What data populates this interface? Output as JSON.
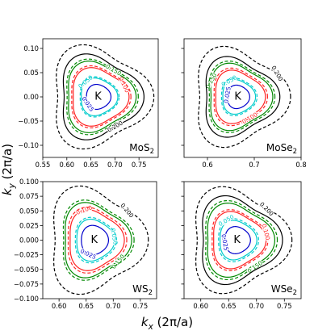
{
  "figure": {
    "xlabel_main": "k",
    "xlabel_sub": "x",
    "xlabel_rest": " (2π/a)",
    "ylabel_main": "k",
    "ylabel_sub": "y",
    "ylabel_rest": " (2π/a)"
  },
  "chart_data": [
    {
      "type": "line",
      "panel": "MoS",
      "panel_sub": "2",
      "k_label": "K",
      "center": [
        0.665,
        0.0
      ],
      "xlim": [
        0.55,
        0.79
      ],
      "ylim": [
        -0.125,
        0.12
      ],
      "x_ticks": [
        0.55,
        0.6,
        0.65,
        0.7,
        0.75
      ],
      "x_tick_labels": [
        "0.55",
        "0.60",
        "0.65",
        "0.70",
        "0.75"
      ],
      "y_ticks": [
        -0.1,
        -0.05,
        0.0,
        0.05,
        0.1
      ],
      "y_tick_labels": [
        "−0.10",
        "−0.05",
        "0.00",
        "0.05",
        "0.10"
      ],
      "contours": [
        {
          "level": 0.025,
          "color": "#0000cc",
          "style": "solid",
          "r": 0.0255,
          "trig": 0.05,
          "label": "0.025",
          "label_angle": 215
        },
        {
          "level": 0.05,
          "color": "#00cccc",
          "style": "solid",
          "r": 0.038,
          "trig": 0.08,
          "label": "0.050",
          "label_angle": 130
        },
        {
          "level": 0.05,
          "color": "#00cccc",
          "style": "dashed",
          "r": 0.0405,
          "trig": 0.08
        },
        {
          "level": 0.1,
          "color": "#ff2222",
          "style": "solid",
          "r": 0.058,
          "trig": 0.11,
          "label": "0.100",
          "label_angle": 25
        },
        {
          "level": 0.1,
          "color": "#ff2222",
          "style": "dashed",
          "r": 0.0615,
          "trig": 0.11
        },
        {
          "level": 0.15,
          "color": "#008800",
          "style": "solid",
          "r": 0.07,
          "trig": 0.13
        },
        {
          "level": 0.15,
          "color": "#008800",
          "style": "dashed",
          "r": 0.074,
          "trig": 0.13,
          "label": "0.150",
          "label_angle": 60
        },
        {
          "level": 0.2,
          "color": "#000000",
          "style": "solid",
          "r": 0.083,
          "trig": 0.15,
          "label": "0.200",
          "label_angle": 300
        },
        {
          "level": 0.2,
          "color": "#000000",
          "style": "dashed",
          "r": 0.1,
          "trig": 0.16
        }
      ]
    },
    {
      "type": "line",
      "panel": "MoSe",
      "panel_sub": "2",
      "k_label": "K",
      "center": [
        0.665,
        0.0
      ],
      "xlim": [
        0.55,
        0.8
      ],
      "ylim": [
        -0.125,
        0.12
      ],
      "x_ticks": [
        0.6,
        0.7,
        0.8
      ],
      "x_tick_labels": [
        "0.6",
        "0.7",
        "0.8"
      ],
      "y_ticks": [
        -0.1,
        -0.05,
        0.0,
        0.05,
        0.1
      ],
      "y_tick_labels": [],
      "contours": [
        {
          "level": 0.025,
          "color": "#0000cc",
          "style": "solid",
          "r": 0.024,
          "trig": 0.05,
          "label": "0.025",
          "label_angle": 170
        },
        {
          "level": 0.05,
          "color": "#00cccc",
          "style": "solid",
          "r": 0.035,
          "trig": 0.08,
          "label": "0.050",
          "label_angle": 120
        },
        {
          "level": 0.05,
          "color": "#00cccc",
          "style": "dashed",
          "r": 0.038,
          "trig": 0.08
        },
        {
          "level": 0.1,
          "color": "#ff2222",
          "style": "solid",
          "r": 0.053,
          "trig": 0.11
        },
        {
          "level": 0.1,
          "color": "#ff2222",
          "style": "dashed",
          "r": 0.057,
          "trig": 0.11,
          "label": "0.100",
          "label_angle": 300
        },
        {
          "level": 0.15,
          "color": "#008800",
          "style": "solid",
          "r": 0.066,
          "trig": 0.13,
          "label": "0.150",
          "label_angle": 150
        },
        {
          "level": 0.15,
          "color": "#008800",
          "style": "dashed",
          "r": 0.07,
          "trig": 0.13
        },
        {
          "level": 0.2,
          "color": "#000000",
          "style": "solid",
          "r": 0.078,
          "trig": 0.15
        },
        {
          "level": 0.2,
          "color": "#000000",
          "style": "dashed",
          "r": 0.097,
          "trig": 0.16,
          "label": "0.200",
          "label_angle": 30
        }
      ]
    },
    {
      "type": "line",
      "panel": "WS",
      "panel_sub": "2",
      "k_label": "K",
      "center": [
        0.665,
        0.0
      ],
      "xlim": [
        0.57,
        0.78
      ],
      "ylim": [
        -0.1,
        0.1
      ],
      "x_ticks": [
        0.6,
        0.65,
        0.7,
        0.75
      ],
      "x_tick_labels": [
        "0.60",
        "0.65",
        "0.70",
        "0.75"
      ],
      "y_ticks": [
        -0.1,
        -0.075,
        -0.05,
        -0.025,
        0.0,
        0.025,
        0.05,
        0.075,
        0.1
      ],
      "y_tick_labels": [
        "−0.100",
        "−0.075",
        "−0.050",
        "−0.025",
        "0.000",
        "0.025",
        "0.050",
        "0.075",
        "0.100"
      ],
      "contours": [
        {
          "level": 0.025,
          "color": "#0000cc",
          "style": "solid",
          "r": 0.025,
          "trig": 0.05,
          "label": "0.025",
          "label_angle": 245
        },
        {
          "level": 0.05,
          "color": "#00cccc",
          "style": "solid",
          "r": 0.035,
          "trig": 0.08,
          "label": "0.050",
          "label_angle": 10
        },
        {
          "level": 0.05,
          "color": "#00cccc",
          "style": "dashed",
          "r": 0.038,
          "trig": 0.08
        },
        {
          "level": 0.1,
          "color": "#ff2222",
          "style": "solid",
          "r": 0.05,
          "trig": 0.11,
          "label": "0.100",
          "label_angle": 110
        },
        {
          "level": 0.1,
          "color": "#ff2222",
          "style": "dashed",
          "r": 0.054,
          "trig": 0.11
        },
        {
          "level": 0.15,
          "color": "#008800",
          "style": "solid",
          "r": 0.061,
          "trig": 0.13,
          "label": "0.150",
          "label_angle": 320
        },
        {
          "level": 0.15,
          "color": "#008800",
          "style": "dashed",
          "r": 0.065,
          "trig": 0.13
        },
        {
          "level": 0.2,
          "color": "#000000",
          "style": "dashed",
          "r": 0.086,
          "trig": 0.16,
          "label": "0.200",
          "label_angle": 40
        }
      ]
    },
    {
      "type": "line",
      "panel": "WSe",
      "panel_sub": "2",
      "k_label": "K",
      "center": [
        0.665,
        0.0
      ],
      "xlim": [
        0.57,
        0.78
      ],
      "ylim": [
        -0.1,
        0.1
      ],
      "x_ticks": [
        0.6,
        0.65,
        0.7,
        0.75
      ],
      "x_tick_labels": [
        "0.60",
        "0.65",
        "0.70",
        "0.75"
      ],
      "y_ticks": [
        -0.1,
        -0.075,
        -0.05,
        -0.025,
        0.0,
        0.025,
        0.05,
        0.075,
        0.1
      ],
      "y_tick_labels": [],
      "contours": [
        {
          "level": 0.025,
          "color": "#0000cc",
          "style": "solid",
          "r": 0.023,
          "trig": 0.05,
          "label": "0.025",
          "label_angle": 190
        },
        {
          "level": 0.05,
          "color": "#00cccc",
          "style": "solid",
          "r": 0.033,
          "trig": 0.08
        },
        {
          "level": 0.05,
          "color": "#00cccc",
          "style": "dashed",
          "r": 0.036,
          "trig": 0.08,
          "label": "0.050",
          "label_angle": 120
        },
        {
          "level": 0.1,
          "color": "#ff2222",
          "style": "solid",
          "r": 0.047,
          "trig": 0.11
        },
        {
          "level": 0.1,
          "color": "#ff2222",
          "style": "dashed",
          "r": 0.05,
          "trig": 0.11,
          "label": "0.100",
          "label_angle": 15
        },
        {
          "level": 0.15,
          "color": "#008800",
          "style": "solid",
          "r": 0.06,
          "trig": 0.13
        },
        {
          "level": 0.15,
          "color": "#008800",
          "style": "dashed",
          "r": 0.064,
          "trig": 0.13,
          "label": "0.150",
          "label_angle": 305
        },
        {
          "level": 0.2,
          "color": "#000000",
          "style": "solid",
          "r": 0.071,
          "trig": 0.15
        },
        {
          "level": 0.2,
          "color": "#000000",
          "style": "dashed",
          "r": 0.085,
          "trig": 0.16,
          "label": "0.200",
          "label_angle": 45
        }
      ]
    }
  ]
}
